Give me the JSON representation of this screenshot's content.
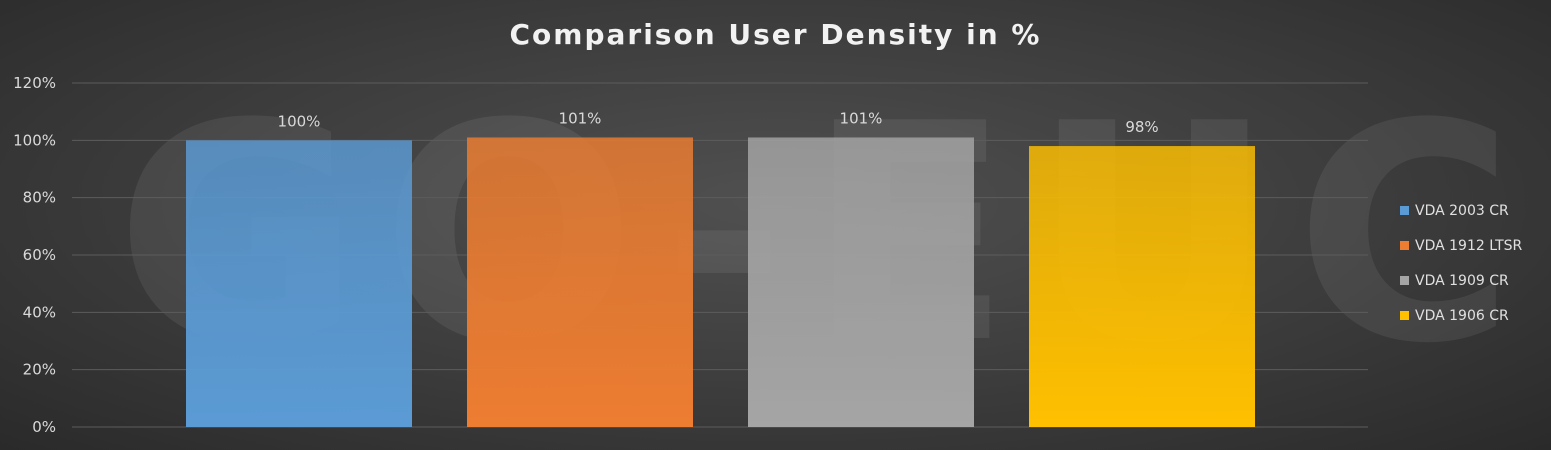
{
  "watermark": "GO-EUC",
  "chart_data": {
    "type": "bar",
    "title": "Comparison User Density in %",
    "xlabel": "",
    "ylabel": "",
    "ylim": [
      0,
      120
    ],
    "y_ticks": [
      0,
      20,
      40,
      60,
      80,
      100,
      120
    ],
    "y_tick_labels": [
      "0%",
      "20%",
      "40%",
      "60%",
      "80%",
      "100%",
      "120%"
    ],
    "grid": true,
    "legend_position": "right",
    "series": [
      {
        "name": "VDA 2003 CR",
        "value": 100,
        "label": "100%",
        "color": "#5b9bd5"
      },
      {
        "name": "VDA 1912 LTSR",
        "value": 101,
        "label": "101%",
        "color": "#ed7d31"
      },
      {
        "name": "VDA 1909 CR",
        "value": 101,
        "label": "101%",
        "color": "#a5a5a5"
      },
      {
        "name": "VDA 1906 CR",
        "value": 98,
        "label": "98%",
        "color": "#ffc000"
      }
    ]
  }
}
